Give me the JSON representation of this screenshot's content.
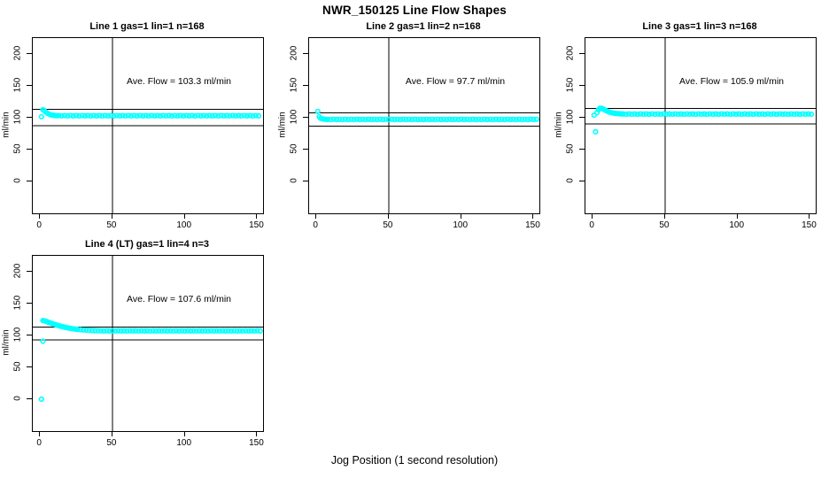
{
  "chart_data": {
    "type": "scatter",
    "title": "NWR_150125  Line Flow Shapes",
    "xlabel": "Jog Position (1 second resolution)",
    "ylabel": "ml/min",
    "point_color": "#00ffff",
    "line_color": "#000000",
    "grid": false,
    "x_ticks": [
      0,
      50,
      100,
      150
    ],
    "y_ticks": [
      0,
      50,
      100,
      150,
      200
    ],
    "x_range": [
      -5,
      154
    ],
    "y_range": [
      -50,
      225
    ],
    "vline_x": 50,
    "subplots": [
      {
        "title": "Line 1 gas=1 lin=1 n=168",
        "annotation": "Ave. Flow =  103.3  ml/min",
        "ave_flow": 103.3,
        "n": 168,
        "upper_line": 113.5,
        "lower_line": 87.5,
        "points": [
          [
            1,
            101.5
          ],
          [
            2,
            112.5
          ],
          [
            3,
            111.2
          ],
          [
            4,
            109.0
          ],
          [
            5,
            107.2
          ],
          [
            6,
            105.8
          ],
          [
            7,
            104.9
          ],
          [
            8,
            104.2
          ],
          [
            9,
            103.8
          ],
          [
            10,
            103.5
          ],
          [
            11,
            103.3
          ],
          [
            12,
            103.2
          ]
        ],
        "flat": {
          "from": 13,
          "to": 152,
          "step": 2,
          "values": [
            103.4,
            102.9,
            103.3,
            102.8
          ]
        }
      },
      {
        "title": "Line 2 gas=1 lin=2 n=168",
        "annotation": "Ave. Flow =  97.7  ml/min",
        "ave_flow": 97.7,
        "n": 168,
        "upper_line": 107.5,
        "lower_line": 86.5,
        "points": [
          [
            1,
            110.0
          ],
          [
            2,
            101.5
          ],
          [
            3,
            99.0
          ],
          [
            4,
            98.2
          ],
          [
            5,
            97.8
          ],
          [
            6,
            97.6
          ],
          [
            7,
            97.5
          ]
        ],
        "flat": {
          "from": 8,
          "to": 152,
          "step": 2,
          "values": [
            97.5,
            97.1,
            97.6,
            97.2
          ]
        }
      },
      {
        "title": "Line 3 gas=1 lin=3 n=168",
        "annotation": "Ave. Flow =  105.9  ml/min",
        "ave_flow": 105.9,
        "n": 168,
        "upper_line": 114.5,
        "lower_line": 90.0,
        "points": [
          [
            1,
            104.0
          ],
          [
            2,
            78.0
          ],
          [
            3,
            108.0
          ],
          [
            4,
            112.5
          ],
          [
            5,
            114.8
          ],
          [
            6,
            115.0
          ],
          [
            7,
            114.0
          ],
          [
            8,
            112.8
          ],
          [
            9,
            111.5
          ],
          [
            10,
            110.3
          ],
          [
            11,
            109.3
          ],
          [
            12,
            108.5
          ],
          [
            13,
            107.9
          ],
          [
            14,
            107.4
          ],
          [
            15,
            107.0
          ],
          [
            16,
            106.7
          ],
          [
            17,
            106.5
          ],
          [
            18,
            106.3
          ],
          [
            19,
            106.1
          ],
          [
            20,
            106.0
          ]
        ],
        "flat": {
          "from": 21,
          "to": 152,
          "step": 2,
          "values": [
            105.9,
            105.5,
            106.0,
            105.6
          ]
        }
      },
      {
        "title": "Line 4 (LT) gas=1 lin=4 n=3",
        "annotation": "Ave. Flow =  107.6  ml/min",
        "ave_flow": 107.6,
        "n": 3,
        "upper_line": 113.5,
        "lower_line": 93.0,
        "points": [
          [
            1,
            0.0
          ],
          [
            2,
            91.0
          ],
          [
            2,
            123.5
          ],
          [
            3,
            123.0
          ],
          [
            4,
            122.3
          ],
          [
            5,
            121.5
          ],
          [
            6,
            120.6
          ],
          [
            7,
            119.8
          ],
          [
            8,
            119.0
          ],
          [
            9,
            118.2
          ],
          [
            10,
            117.4
          ],
          [
            11,
            116.7
          ],
          [
            12,
            116.0
          ],
          [
            13,
            115.3
          ],
          [
            14,
            114.7
          ],
          [
            15,
            114.1
          ],
          [
            16,
            113.5
          ],
          [
            17,
            113.0
          ],
          [
            18,
            112.5
          ],
          [
            19,
            112.0
          ],
          [
            20,
            111.6
          ],
          [
            21,
            111.2
          ],
          [
            22,
            110.8
          ],
          [
            23,
            110.5
          ],
          [
            24,
            110.1
          ],
          [
            25,
            109.8
          ],
          [
            26,
            109.5
          ],
          [
            28,
            109.0
          ],
          [
            30,
            108.6
          ],
          [
            32,
            108.3
          ],
          [
            34,
            108.0
          ],
          [
            36,
            107.8
          ],
          [
            38,
            107.6
          ],
          [
            40,
            107.5
          ]
        ],
        "flat": {
          "from": 42,
          "to": 152,
          "step": 2,
          "values": [
            107.3,
            107.0,
            107.4,
            107.1
          ]
        }
      }
    ]
  }
}
